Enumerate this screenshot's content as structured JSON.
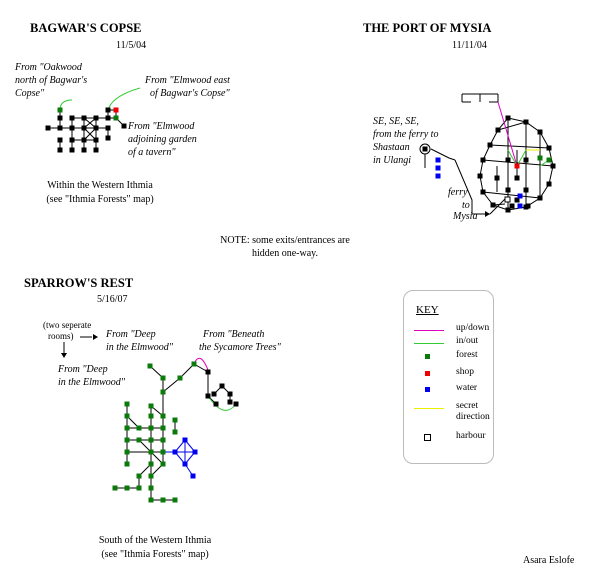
{
  "maps": [
    {
      "title": "BAGWAR'S COPSE",
      "date": "11/5/04",
      "region_note": "Within the Western Ithmia",
      "region_note2": "(see \"Ithmia Forests\" map)",
      "labels": [
        "From \"Oakwood",
        "north of Bagwar's",
        "Copse\"",
        "From \"Elmwood east",
        "of Bagwar's Copse\"",
        "From \"Elmwood",
        "adjoining garden",
        "of a tavern\""
      ]
    },
    {
      "title": "THE PORT OF MYSIA",
      "date": "11/11/04",
      "labels": [
        "SE, SE, SE,",
        "from the ferry to",
        "Shastaan",
        "in Ulangi",
        "ferry",
        "to",
        "Mysia"
      ]
    },
    {
      "title": "SPARROW'S REST",
      "date": "5/16/07",
      "region_note": "South of the Western Ithmia",
      "region_note2": "(see \"Ithmia Forests\" map)",
      "labels": [
        "(two seperate",
        "rooms)",
        "From \"Deep",
        "in the Elmwood\"",
        "From \"Beneath",
        "the Sycamore Trees\"",
        "From \"Deep",
        "in the Elmwood\""
      ]
    }
  ],
  "note": "NOTE: some exits/entrances are",
  "note2": "hidden one-way.",
  "key": {
    "title": "KEY",
    "items": [
      {
        "label": "up/down",
        "symbol": "line",
        "color": "#e000c0"
      },
      {
        "label": "in/out",
        "symbol": "line",
        "color": "#33cc33"
      },
      {
        "label": "forest",
        "symbol": "square",
        "color": "#0a7a0a"
      },
      {
        "label": "shop",
        "symbol": "square",
        "color": "#ee0000"
      },
      {
        "label": "water",
        "symbol": "square",
        "color": "#0000ee"
      },
      {
        "label": "secret",
        "label2": "direction",
        "symbol": "line",
        "color": "#eeee00"
      },
      {
        "label": "harbour",
        "symbol": "hollow-square",
        "color": "#000000"
      }
    ]
  },
  "author": "Asara Eslofe"
}
